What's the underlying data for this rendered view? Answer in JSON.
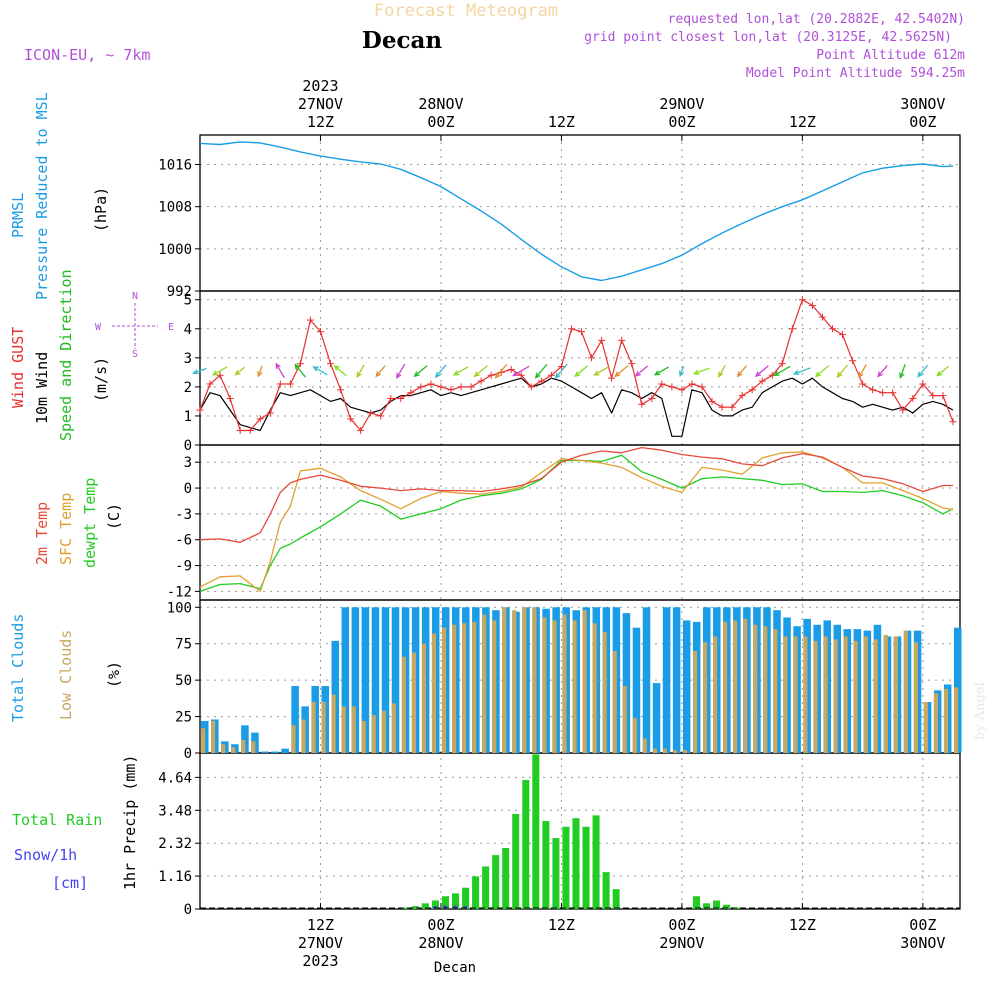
{
  "header": {
    "ghost_title": "Forecast Meteogram",
    "location": "Decan",
    "model": "ICON-EU, ~ 7km",
    "requested": "requested lon,lat (20.2882E, 42.5402N)",
    "grid_point": "grid point closest lon,lat (20.3125E, 42.5625N)",
    "point_altitude": "Point Altitude 612m",
    "model_altitude": "Model Point Altitude 594.25m",
    "watermark": "by Angel",
    "footer_location": "Decan"
  },
  "time_axis": {
    "top_labels": [
      {
        "h": 12,
        "lines": [
          "2023",
          "27NOV",
          "12Z"
        ]
      },
      {
        "h": 24,
        "lines": [
          "28NOV",
          "00Z"
        ]
      },
      {
        "h": 36,
        "lines": [
          "12Z"
        ]
      },
      {
        "h": 48,
        "lines": [
          "29NOV",
          "00Z"
        ]
      },
      {
        "h": 60,
        "lines": [
          "12Z"
        ]
      },
      {
        "h": 72,
        "lines": [
          "30NOV",
          "00Z"
        ]
      }
    ],
    "bottom_labels": [
      {
        "h": 12,
        "lines": [
          "12Z",
          "27NOV",
          "2023"
        ]
      },
      {
        "h": 24,
        "lines": [
          "00Z",
          "28NOV"
        ]
      },
      {
        "h": 36,
        "lines": [
          "12Z"
        ]
      },
      {
        "h": 48,
        "lines": [
          "00Z",
          "29NOV"
        ]
      },
      {
        "h": 60,
        "lines": [
          "12Z"
        ]
      },
      {
        "h": 72,
        "lines": [
          "00Z",
          "30NOV"
        ]
      }
    ]
  },
  "colors": {
    "pressure": "#1a9de6",
    "gust": "#e83030",
    "wind10m": "#000000",
    "dir": "#22bb22",
    "temp2m": "#e84a3a",
    "sfc": "#e0a030",
    "dew": "#22cc22",
    "total_clouds": "#1a9de6",
    "low_clouds": "#c8a860",
    "rain": "#22cc22",
    "snow": "#4444ee",
    "purple": "#b050d8",
    "ghost": "#f2d6a0",
    "grid": "#999999"
  },
  "panels": {
    "pressure": {
      "labels": [
        "PRMSL",
        "Pressure Reduced to MSL"
      ],
      "unit": "(hPa)"
    },
    "wind": {
      "labels": [
        "Wind GUST",
        "10m Wind",
        "Speed and Direction"
      ],
      "unit": "(m/s)",
      "compass": {
        "n": "N",
        "s": "S",
        "w": "W",
        "e": "E"
      }
    },
    "temp": {
      "labels": [
        "2m Temp",
        "SFC Temp",
        "dewpt Temp"
      ],
      "unit": "(C)"
    },
    "clouds": {
      "labels": [
        "Total Clouds",
        "Low Clouds"
      ],
      "unit": "(%)"
    },
    "precip": {
      "labels": [
        "Total  Rain",
        "Snow/1h",
        "[cm]"
      ],
      "unit": "1hr Precip (mm)"
    }
  },
  "chart_data": [
    {
      "id": "pressure",
      "type": "line",
      "title": "PRMSL Pressure Reduced to MSL",
      "ylabel": "hPa",
      "ylim": [
        992,
        1021.6
      ],
      "yticks": [
        992,
        1000,
        1008,
        1016
      ],
      "x_hours": [
        0,
        2,
        4,
        6,
        8,
        10,
        12,
        14,
        16,
        18,
        20,
        22,
        24,
        26,
        28,
        30,
        32,
        34,
        36,
        38,
        40,
        42,
        44,
        46,
        48,
        50,
        52,
        54,
        56,
        58,
        60,
        62,
        64,
        66,
        68,
        70,
        72,
        74,
        75
      ],
      "series": [
        {
          "name": "PRMSL",
          "values": [
            1020,
            1019.8,
            1020.3,
            1020.1,
            1019.3,
            1018.4,
            1017.6,
            1017,
            1016.5,
            1016.1,
            1015.1,
            1013.5,
            1011.8,
            1009.5,
            1007.2,
            1004.7,
            1001.8,
            999,
            996.6,
            994.7,
            994,
            994.8,
            996,
            997.2,
            998.8,
            1001,
            1003,
            1004.8,
            1006.5,
            1008,
            1009.3,
            1011,
            1012.7,
            1014.4,
            1015.3,
            1015.8,
            1016.1,
            1015.6,
            1015.7
          ]
        }
      ]
    },
    {
      "id": "wind",
      "type": "line",
      "title": "Wind GUST / 10m Wind Speed and Direction",
      "ylabel": "m/s",
      "ylim": [
        0,
        5.3
      ],
      "yticks": [
        0,
        1,
        2,
        3,
        4,
        5
      ],
      "x_hours": [
        0,
        1,
        2,
        3,
        4,
        5,
        6,
        7,
        8,
        9,
        10,
        11,
        12,
        13,
        14,
        15,
        16,
        17,
        18,
        19,
        20,
        21,
        22,
        23,
        24,
        25,
        26,
        27,
        28,
        29,
        30,
        31,
        32,
        33,
        34,
        35,
        36,
        37,
        38,
        39,
        40,
        41,
        42,
        43,
        44,
        45,
        46,
        47,
        48,
        49,
        50,
        51,
        52,
        53,
        54,
        55,
        56,
        57,
        58,
        59,
        60,
        61,
        62,
        63,
        64,
        65,
        66,
        67,
        68,
        69,
        70,
        71,
        72,
        73,
        74,
        75
      ],
      "series": [
        {
          "name": "Wind GUST",
          "values": [
            1.2,
            2.1,
            2.4,
            1.6,
            0.5,
            0.5,
            0.9,
            1.1,
            2.1,
            2.1,
            2.8,
            4.3,
            3.9,
            2.8,
            1.9,
            0.9,
            0.5,
            1.1,
            1.0,
            1.6,
            1.6,
            1.8,
            2.0,
            2.1,
            2.0,
            1.9,
            2.0,
            2.0,
            2.2,
            2.4,
            2.5,
            2.6,
            2.4,
            2.0,
            2.2,
            2.4,
            2.7,
            4.0,
            3.9,
            3.0,
            3.6,
            2.3,
            3.6,
            2.8,
            1.4,
            1.6,
            2.1,
            2.0,
            1.9,
            2.1,
            2.0,
            1.5,
            1.3,
            1.3,
            1.7,
            1.9,
            2.2,
            2.4,
            2.8,
            4.0,
            5.0,
            4.8,
            4.4,
            4.0,
            3.8,
            2.9,
            2.1,
            1.9,
            1.8,
            1.8,
            1.2,
            1.6,
            2.1,
            1.7,
            1.7,
            0.8
          ]
        },
        {
          "name": "10m Wind",
          "values": [
            1.2,
            1.8,
            1.7,
            1.2,
            0.7,
            0.6,
            0.5,
            1.2,
            1.8,
            1.7,
            1.8,
            1.9,
            1.7,
            1.5,
            1.6,
            1.3,
            1.2,
            1.1,
            1.2,
            1.5,
            1.7,
            1.7,
            1.8,
            1.9,
            1.7,
            1.8,
            1.7,
            1.8,
            1.9,
            2.0,
            2.1,
            2.2,
            2.3,
            2.0,
            2.1,
            2.3,
            2.2,
            2.0,
            1.8,
            1.6,
            1.8,
            1.1,
            1.9,
            1.8,
            1.6,
            1.8,
            1.6,
            0.3,
            0.3,
            1.9,
            1.8,
            1.2,
            1.0,
            1.0,
            1.2,
            1.3,
            1.8,
            2.0,
            2.2,
            2.3,
            2.1,
            2.3,
            2.0,
            1.8,
            1.6,
            1.5,
            1.3,
            1.4,
            1.3,
            1.2,
            1.3,
            1.1,
            1.4,
            1.5,
            1.4,
            1.2
          ]
        }
      ],
      "direction_hours": [
        0,
        2,
        4,
        6,
        8,
        10,
        12,
        14,
        16,
        18,
        20,
        22,
        24,
        26,
        28,
        30,
        32,
        34,
        36,
        38,
        40,
        42,
        44,
        46,
        48,
        50,
        52,
        54,
        56,
        58,
        60,
        62,
        64,
        66,
        68,
        70,
        72,
        74
      ],
      "direction_to_deg": [
        250,
        240,
        230,
        200,
        330,
        320,
        300,
        310,
        210,
        220,
        210,
        230,
        220,
        240,
        230,
        220,
        240,
        220,
        220,
        230,
        240,
        230,
        230,
        240,
        200,
        250,
        210,
        220,
        230,
        240,
        250,
        230,
        220,
        210,
        220,
        200,
        220,
        230
      ]
    },
    {
      "id": "temp",
      "type": "line",
      "title": "2m Temp / SFC Temp / dewpt Temp",
      "ylabel": "C",
      "ylim": [
        -13,
        5
      ],
      "yticks": [
        -12,
        -9,
        -6,
        -3,
        0,
        3
      ],
      "x_hours": [
        0,
        2,
        4,
        6,
        7,
        8,
        9,
        10,
        12,
        14,
        16,
        18,
        20,
        22,
        24,
        26,
        28,
        30,
        32,
        34,
        36,
        38,
        40,
        42,
        44,
        46,
        48,
        50,
        52,
        54,
        56,
        58,
        60,
        62,
        64,
        66,
        68,
        70,
        72,
        74,
        75
      ],
      "series": [
        {
          "name": "2m Temp",
          "values": [
            -6,
            -5.9,
            -6.3,
            -5.2,
            -3,
            -0.5,
            0.6,
            1,
            1.5,
            0.9,
            0.2,
            0,
            -0.3,
            -0.1,
            -0.3,
            -0.3,
            -0.4,
            -0.1,
            0.3,
            1.1,
            3,
            3.8,
            4.3,
            4.1,
            4.7,
            4.4,
            3.9,
            3.6,
            3.4,
            2.8,
            2.6,
            3.5,
            4,
            3.6,
            2.4,
            1.4,
            1.1,
            0.5,
            -0.4,
            0.3,
            0.3
          ]
        },
        {
          "name": "SFC Temp",
          "values": [
            -11.5,
            -10.3,
            -10.2,
            -12,
            -8.5,
            -4,
            -2.1,
            2,
            2.3,
            1.3,
            -0.3,
            -1.3,
            -2.4,
            -1.2,
            -0.4,
            -0.6,
            -0.7,
            -0.4,
            0.1,
            1.8,
            3.4,
            3.2,
            2.9,
            2.4,
            1.2,
            0.2,
            -0.5,
            2.4,
            2.1,
            1.6,
            3.5,
            4.1,
            4.2,
            3.5,
            2.4,
            0.6,
            0.6,
            -0.3,
            -1.2,
            -2.3,
            -2.5
          ]
        },
        {
          "name": "dewpt Temp",
          "values": [
            -12,
            -11.2,
            -11.1,
            -11.7,
            -9,
            -7,
            -6.5,
            -5.8,
            -4.5,
            -3,
            -1.4,
            -2.1,
            -3.6,
            -3,
            -2.4,
            -1.4,
            -0.9,
            -0.6,
            -0.1,
            1,
            3.2,
            3.2,
            3.1,
            3.8,
            1.9,
            1.0,
            0,
            1.1,
            1.3,
            1.1,
            0.9,
            0.4,
            0.5,
            -0.4,
            -0.4,
            -0.5,
            -0.3,
            -0.9,
            -1.7,
            -3,
            -2.4
          ]
        }
      ]
    },
    {
      "id": "clouds",
      "type": "bar",
      "title": "Total Clouds / Low Clouds",
      "ylabel": "%",
      "ylim": [
        0,
        105
      ],
      "yticks": [
        0,
        25,
        50,
        75,
        100
      ],
      "x_hours": [
        0,
        1,
        2,
        3,
        4,
        5,
        6,
        7,
        8,
        9,
        10,
        11,
        12,
        13,
        14,
        15,
        16,
        17,
        18,
        19,
        20,
        21,
        22,
        23,
        24,
        25,
        26,
        27,
        28,
        29,
        30,
        31,
        32,
        33,
        34,
        35,
        36,
        37,
        38,
        39,
        40,
        41,
        42,
        43,
        44,
        45,
        46,
        47,
        48,
        49,
        50,
        51,
        52,
        53,
        54,
        55,
        56,
        57,
        58,
        59,
        60,
        61,
        62,
        63,
        64,
        65,
        66,
        67,
        68,
        69,
        70,
        71,
        72,
        73,
        74,
        75
      ],
      "series": [
        {
          "name": "Total Clouds",
          "values": [
            22,
            23,
            8,
            6,
            19,
            14,
            1,
            1,
            3,
            46,
            32,
            46,
            46,
            77,
            100,
            100,
            100,
            100,
            100,
            100,
            100,
            100,
            100,
            100,
            100,
            100,
            100,
            100,
            100,
            98,
            100,
            97,
            100,
            100,
            99,
            100,
            100,
            98,
            100,
            100,
            100,
            100,
            96,
            86,
            100,
            48,
            100,
            100,
            91,
            90,
            100,
            100,
            100,
            100,
            100,
            100,
            100,
            98,
            93,
            87,
            92,
            88,
            91,
            88,
            85,
            85,
            84,
            88,
            80,
            80,
            84,
            84,
            35,
            43,
            47,
            86
          ]
        },
        {
          "name": "Low Clouds",
          "values": [
            17,
            22,
            6,
            4,
            9,
            8,
            0,
            0,
            0,
            19,
            23,
            35,
            35,
            40,
            32,
            32,
            22,
            26,
            29,
            34,
            66,
            69,
            75,
            82,
            86,
            88,
            89,
            90,
            95,
            91,
            100,
            98,
            100,
            100,
            93,
            91,
            95,
            91,
            98,
            89,
            83,
            70,
            46,
            24,
            10,
            3,
            3,
            2,
            2,
            70,
            76,
            80,
            90,
            91,
            92,
            88,
            87,
            85,
            80,
            80,
            80,
            77,
            80,
            78,
            80,
            77,
            80,
            78,
            81,
            80,
            84,
            76,
            35,
            41,
            44,
            45
          ]
        }
      ]
    },
    {
      "id": "precip",
      "type": "bar",
      "title": "1hr Precip",
      "ylabel": "1hr Precip (mm)",
      "ylim": [
        0,
        5.5
      ],
      "yticks": [
        0,
        1.16,
        2.32,
        3.48,
        4.64
      ],
      "x_hours": [
        20,
        21,
        22,
        23,
        24,
        25,
        26,
        27,
        28,
        29,
        30,
        31,
        32,
        33,
        34,
        35,
        36,
        37,
        38,
        39,
        40,
        41,
        42,
        49,
        50,
        51,
        52,
        53
      ],
      "series": [
        {
          "name": "Total Rain",
          "values": [
            0.05,
            0.1,
            0.2,
            0.3,
            0.45,
            0.55,
            0.75,
            1.15,
            1.5,
            1.9,
            2.15,
            3.35,
            4.55,
            5.45,
            3.1,
            2.5,
            2.9,
            3.2,
            2.9,
            3.3,
            1.3,
            0.7,
            0,
            0.45,
            0.2,
            0.3,
            0.15,
            0.05
          ]
        },
        {
          "name": "Snow/1h",
          "values": [
            0,
            0,
            0,
            0.1,
            0.12,
            0.12,
            0.1,
            0,
            0,
            0,
            0,
            0,
            0,
            0,
            0,
            0,
            0,
            0,
            0,
            0,
            0,
            0,
            0,
            0,
            0,
            0,
            0,
            0
          ]
        }
      ]
    }
  ]
}
